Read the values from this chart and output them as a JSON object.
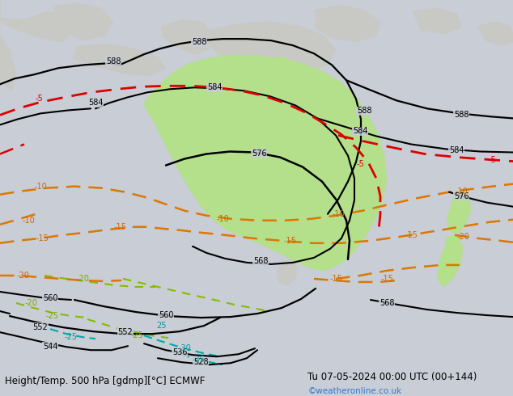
{
  "title_left": "Height/Temp. 500 hPa [gdmp][°C] ECMWF",
  "title_right": "Tu 07-05-2024 00:00 UTC (00+144)",
  "watermark": "©weatheronline.co.uk",
  "ocean_color": "#c8cdd6",
  "land_gray": "#c8c8c4",
  "land_green": "#b4e08c",
  "fig_width": 6.34,
  "fig_height": 4.9,
  "dpi": 100,
  "title_fontsize": 8.5,
  "watermark_color": "#3377cc",
  "label_fontsize": 7,
  "bottom_bar_color": "#e8e8e8"
}
